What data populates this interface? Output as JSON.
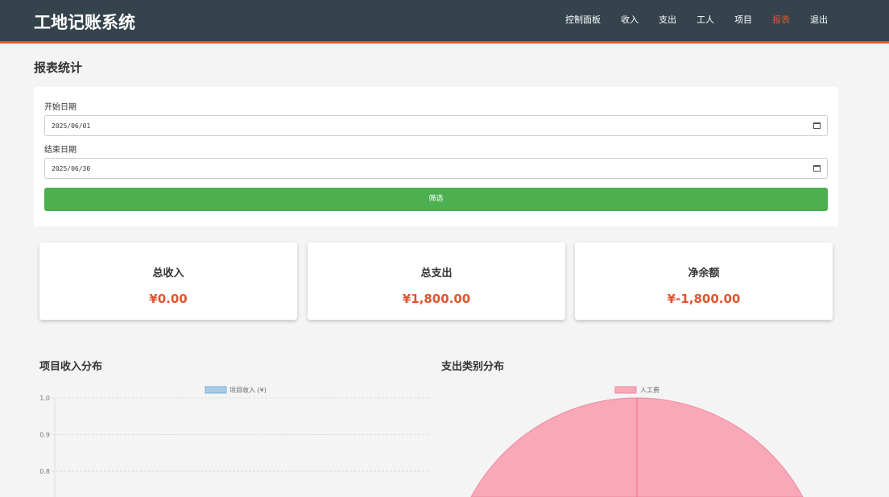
{
  "app": {
    "title": "工地记账系统"
  },
  "nav": {
    "items": [
      {
        "label": "控制面板"
      },
      {
        "label": "收入"
      },
      {
        "label": "支出"
      },
      {
        "label": "工人"
      },
      {
        "label": "项目"
      },
      {
        "label": "报表",
        "active": true
      },
      {
        "label": "退出"
      }
    ]
  },
  "page": {
    "title": "报表统计"
  },
  "filter": {
    "start_label": "开始日期",
    "start_value": "2025/06/01",
    "end_label": "结束日期",
    "end_value": "2025/06/30",
    "button": "筛选"
  },
  "summary": [
    {
      "title": "总收入",
      "value": "¥0.00"
    },
    {
      "title": "总支出",
      "value": "¥1,800.00"
    },
    {
      "title": "净余额",
      "value": "¥-1,800.00"
    }
  ],
  "colors": {
    "accent": "#e0552f",
    "nav_bg": "#35434d",
    "button": "#4caf50",
    "pie": "#f9a8b8"
  },
  "chart_data": [
    {
      "type": "bar",
      "title": "项目收入分布",
      "legend": "项目收入 (¥)",
      "categories": [],
      "values": [],
      "yticks": [
        "1.0",
        "0.9",
        "0.8"
      ],
      "grid": true,
      "legend_position": "top"
    },
    {
      "type": "pie",
      "title": "支出类别分布",
      "legend": "人工费",
      "categories": [
        "人工费"
      ],
      "values": [
        1800
      ],
      "legend_position": "top"
    }
  ]
}
